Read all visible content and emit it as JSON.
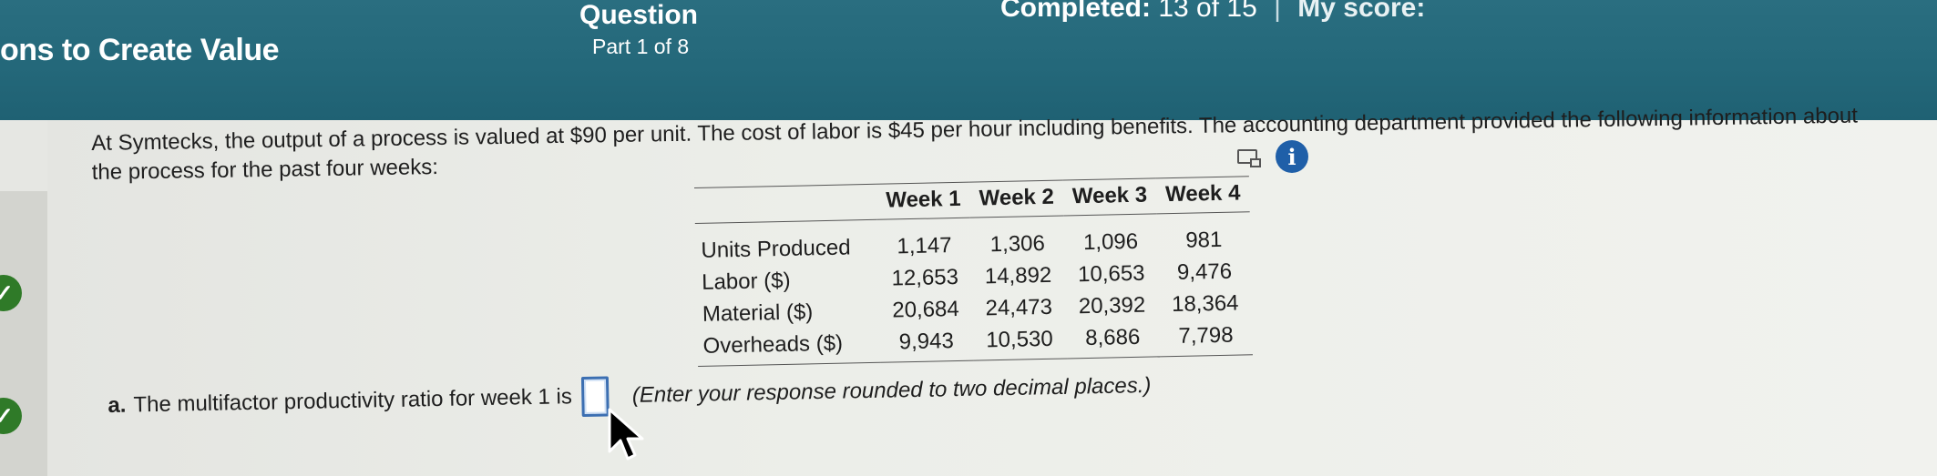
{
  "header": {
    "chapter_title": "ons to Create Value",
    "question_label": "Question",
    "part_label": "Part 1 of 8",
    "completed_label": "Completed:",
    "completed_count": "13 of 15",
    "score_label": "My score:"
  },
  "icons": {
    "table_view": "table-icon",
    "info": "info-icon",
    "completed_check": "check-icon"
  },
  "question": {
    "intro": "At Symtecks, the output of a process is valued at $90 per unit. The cost of labor is $45 per hour including benefits. The accounting department provided the following information about the process for the past four weeks:",
    "table": {
      "columns": [
        "",
        "Week 1",
        "Week 2",
        "Week 3",
        "Week 4"
      ],
      "rows": [
        {
          "label": "Units Produced",
          "values": [
            "1,147",
            "1,306",
            "1,096",
            "981"
          ]
        },
        {
          "label": "Labor ($)",
          "values": [
            "12,653",
            "14,892",
            "10,653",
            "9,476"
          ]
        },
        {
          "label": "Material ($)",
          "values": [
            "20,684",
            "24,473",
            "20,392",
            "18,364"
          ]
        },
        {
          "label": "Overheads ($)",
          "values": [
            "9,943",
            "10,530",
            "8,686",
            "7,798"
          ]
        }
      ]
    },
    "part_a": {
      "label": "a.",
      "prompt": "The multifactor productivity ratio for week 1 is",
      "input_value": "",
      "hint": "(Enter your response rounded to two decimal places.)"
    }
  },
  "colors": {
    "header_bg": "#24687a",
    "check_green": "#2f7a28",
    "info_blue": "#1f5fa8",
    "input_border": "#3c6fb2"
  }
}
